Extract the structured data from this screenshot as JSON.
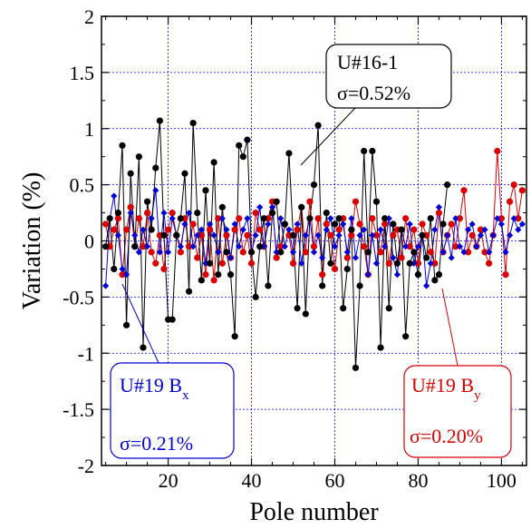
{
  "chart_data": {
    "type": "scatter",
    "title": "",
    "xlabel": "Pole number",
    "ylabel": "Variation (%)",
    "xlim": [
      4,
      106
    ],
    "ylim": [
      -2,
      2
    ],
    "xticks": [
      "20",
      "40",
      "60",
      "80",
      "100"
    ],
    "yticks": [
      "-2",
      "-1.5",
      "-1",
      "-0.5",
      "0",
      "0.5",
      "1",
      "1.5",
      "2"
    ],
    "grid": true,
    "series": [
      {
        "name": "U#16-1",
        "color": "#000000",
        "marker": "circle",
        "x": [
          5,
          6,
          7,
          8,
          9,
          10,
          11,
          12,
          13,
          14,
          15,
          16,
          17,
          18,
          19,
          20,
          21,
          22,
          23,
          24,
          25,
          26,
          27,
          28,
          29,
          30,
          31,
          32,
          33,
          34,
          35,
          36,
          37,
          38,
          39,
          40,
          41,
          42,
          43,
          44,
          45,
          46,
          47,
          48,
          49,
          50,
          51,
          52,
          53,
          54,
          55,
          56,
          57,
          58,
          59,
          60,
          61,
          62,
          63,
          64,
          65,
          66,
          67,
          68,
          69,
          70,
          71,
          72,
          73,
          74,
          75,
          76,
          77,
          78,
          79,
          80,
          81,
          82,
          83,
          84,
          85,
          86,
          87
        ],
        "y": [
          -0.05,
          0.2,
          -0.25,
          0.25,
          0.85,
          -0.75,
          0.6,
          -0.05,
          0.75,
          -0.95,
          0.35,
          0.1,
          0.65,
          1.07,
          0.05,
          -0.7,
          -0.7,
          0.05,
          0.2,
          0.6,
          -0.45,
          1.05,
          0.25,
          -0.35,
          0.45,
          -0.2,
          0.7,
          -0.3,
          0.3,
          -0.1,
          -0.3,
          -0.85,
          0.85,
          0.75,
          0.9,
          -0.1,
          -0.5,
          -0.05,
          0.2,
          -0.4,
          0.25,
          0.35,
          -0.1,
          0.15,
          0.78,
          0.05,
          -0.6,
          0.3,
          -0.65,
          0.2,
          0.5,
          1.03,
          -0.4,
          0.25,
          -0.2,
          0.15,
          0.2,
          -0.6,
          -0.25,
          0.1,
          -1.13,
          -0.4,
          0.8,
          -0.1,
          0.8,
          0.35,
          -0.95,
          0.2,
          -0.6,
          0.15,
          -0.2,
          0.1,
          -0.85,
          -0.2,
          -0.1,
          -0.3,
          0.05,
          -0.15,
          0.2,
          -0.35,
          -0.3,
          0.15,
          0.5
        ]
      },
      {
        "name": "U#19 Bx",
        "color": "#0000dd",
        "marker": "diamond",
        "x": [
          5,
          6,
          7,
          8,
          9,
          10,
          11,
          12,
          13,
          14,
          15,
          16,
          17,
          18,
          19,
          20,
          21,
          22,
          23,
          24,
          25,
          26,
          27,
          28,
          29,
          30,
          31,
          32,
          33,
          34,
          35,
          36,
          37,
          38,
          39,
          40,
          41,
          42,
          43,
          44,
          45,
          46,
          47,
          48,
          49,
          50,
          51,
          52,
          53,
          54,
          55,
          56,
          57,
          58,
          59,
          60,
          61,
          62,
          63,
          64,
          65,
          66,
          67,
          68,
          69,
          70,
          71,
          72,
          73,
          74,
          75,
          76,
          77,
          78,
          79,
          80,
          81,
          82,
          83,
          84,
          85,
          86,
          87,
          88,
          89,
          90,
          91,
          92,
          93,
          94,
          95,
          96,
          97,
          98,
          99,
          100,
          101,
          102,
          103,
          104,
          105
        ],
        "y": [
          -0.4,
          0.2,
          0.4,
          0.05,
          -0.25,
          -0.3,
          0.25,
          0.05,
          -0.1,
          0.1,
          -0.05,
          0.2,
          0.45,
          -0.1,
          0.25,
          -0.1,
          0.2,
          0.05,
          -0.05,
          0.15,
          0.25,
          -0.05,
          0.05,
          0.1,
          -0.2,
          0.15,
          0.05,
          -0.1,
          0.2,
          0.1,
          -0.15,
          0.15,
          -0.05,
          0.1,
          0.2,
          -0.1,
          0.05,
          0.3,
          -0.05,
          0.15,
          0.3,
          -0.1,
          0.2,
          -0.05,
          0.1,
          -0.1,
          0.15,
          -0.2,
          0.05,
          0.2,
          -0.1,
          0.05,
          -0.15,
          0.1,
          0.2,
          -0.05,
          0.05,
          0.15,
          -0.1,
          0.2,
          -0.15,
          0.05,
          0.1,
          -0.3,
          0.05,
          -0.2,
          0.1,
          -0.05,
          0.2,
          -0.15,
          -0.3,
          0.1,
          -0.05,
          0.15,
          -0.2,
          -0.05,
          0.05,
          -0.4,
          -0.2,
          0.1,
          0.3,
          -0.1,
          0.05,
          -0.15,
          0.2,
          -0.05,
          -0.1,
          0.1,
          0.15,
          -0.05,
          0.05,
          0.1,
          -0.1,
          0.05,
          0.2,
          0.15,
          -0.1,
          0.05,
          0.2,
          0.1,
          0.15
        ]
      },
      {
        "name": "U#19 By",
        "color": "#dd0000",
        "marker": "circle",
        "x": [
          5,
          6,
          7,
          8,
          9,
          10,
          11,
          12,
          13,
          14,
          15,
          16,
          17,
          18,
          19,
          20,
          21,
          22,
          23,
          24,
          25,
          26,
          27,
          28,
          29,
          30,
          31,
          32,
          33,
          34,
          35,
          36,
          37,
          38,
          39,
          40,
          41,
          42,
          43,
          44,
          45,
          46,
          47,
          48,
          49,
          50,
          51,
          52,
          53,
          54,
          55,
          56,
          57,
          58,
          59,
          60,
          61,
          62,
          63,
          64,
          65,
          66,
          67,
          68,
          69,
          70,
          71,
          72,
          73,
          74,
          75,
          76,
          77,
          78,
          79,
          80,
          81,
          82,
          83,
          84,
          85,
          86,
          87,
          88,
          89,
          90,
          91,
          92,
          93,
          94,
          95,
          96,
          97,
          98,
          99,
          100,
          101,
          102,
          103,
          104,
          105
        ],
        "y": [
          0.15,
          -0.05,
          0.1,
          0.2,
          -0.3,
          0.1,
          0.3,
          -0.05,
          0.2,
          -0.05,
          0.25,
          -0.1,
          -0.2,
          0.05,
          -0.25,
          0.1,
          0.25,
          0.05,
          -0.1,
          0.2,
          -0.05,
          0.15,
          -0.15,
          0.05,
          -0.3,
          0.1,
          -0.35,
          0.2,
          -0.2,
          0.05,
          -0.15,
          0.1,
          0.2,
          -0.1,
          0.05,
          -0.2,
          0.25,
          0.1,
          -0.05,
          0.2,
          0.35,
          -0.15,
          -0.05,
          0.15,
          0.05,
          -0.2,
          0.1,
          0.3,
          -0.1,
          0.35,
          -0.05,
          0.2,
          -0.3,
          0.15,
          0.05,
          -0.25,
          0.1,
          0.2,
          -0.15,
          0.05,
          0.35,
          0.15,
          -0.05,
          -0.3,
          0.2,
          0.05,
          -0.1,
          0.15,
          -0.2,
          0.05,
          0.1,
          -0.15,
          0.2,
          -0.05,
          0.1,
          -0.2,
          0.15,
          0.05,
          -0.1,
          -0.2,
          0.25,
          -0.1,
          0.05,
          0.15,
          -0.05,
          0.2,
          0.45,
          -0.1,
          0.05,
          -0.05,
          0.1,
          -0.1,
          -0.2,
          0.05,
          0.8,
          0.2,
          -0.3,
          0.35,
          0.5,
          0.2,
          0.45
        ]
      }
    ],
    "annotations": [
      {
        "label": "U#16-1",
        "sigma": "σ=0.52%",
        "color": "#000000"
      },
      {
        "label": "U#19 B",
        "sub": "x",
        "sigma": "σ=0.21%",
        "color": "#0000dd"
      },
      {
        "label": "U#19 B",
        "sub": "y",
        "sigma": "σ=0.20%",
        "color": "#dd0000"
      }
    ]
  }
}
